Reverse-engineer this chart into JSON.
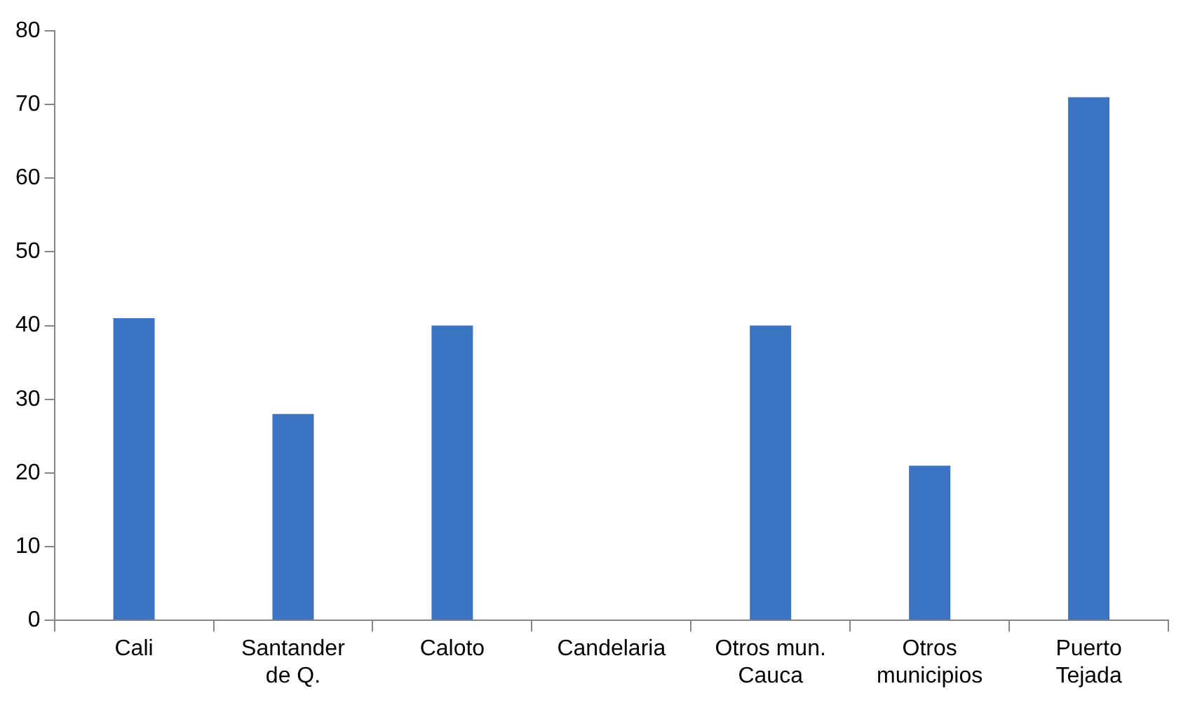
{
  "chart_data": {
    "type": "bar",
    "categories": [
      "Cali",
      "Santander de Q.",
      "Caloto",
      "Candelaria",
      "Otros mun. Cauca",
      "Otros municipios",
      "Puerto Tejada"
    ],
    "values": [
      41,
      28,
      40,
      0,
      40,
      21,
      71
    ],
    "color": "#3a74c2",
    "ylim": [
      0,
      80
    ],
    "yticks": [
      0,
      10,
      20,
      30,
      40,
      50,
      60,
      70,
      80
    ],
    "grid": false,
    "legend": false
  }
}
